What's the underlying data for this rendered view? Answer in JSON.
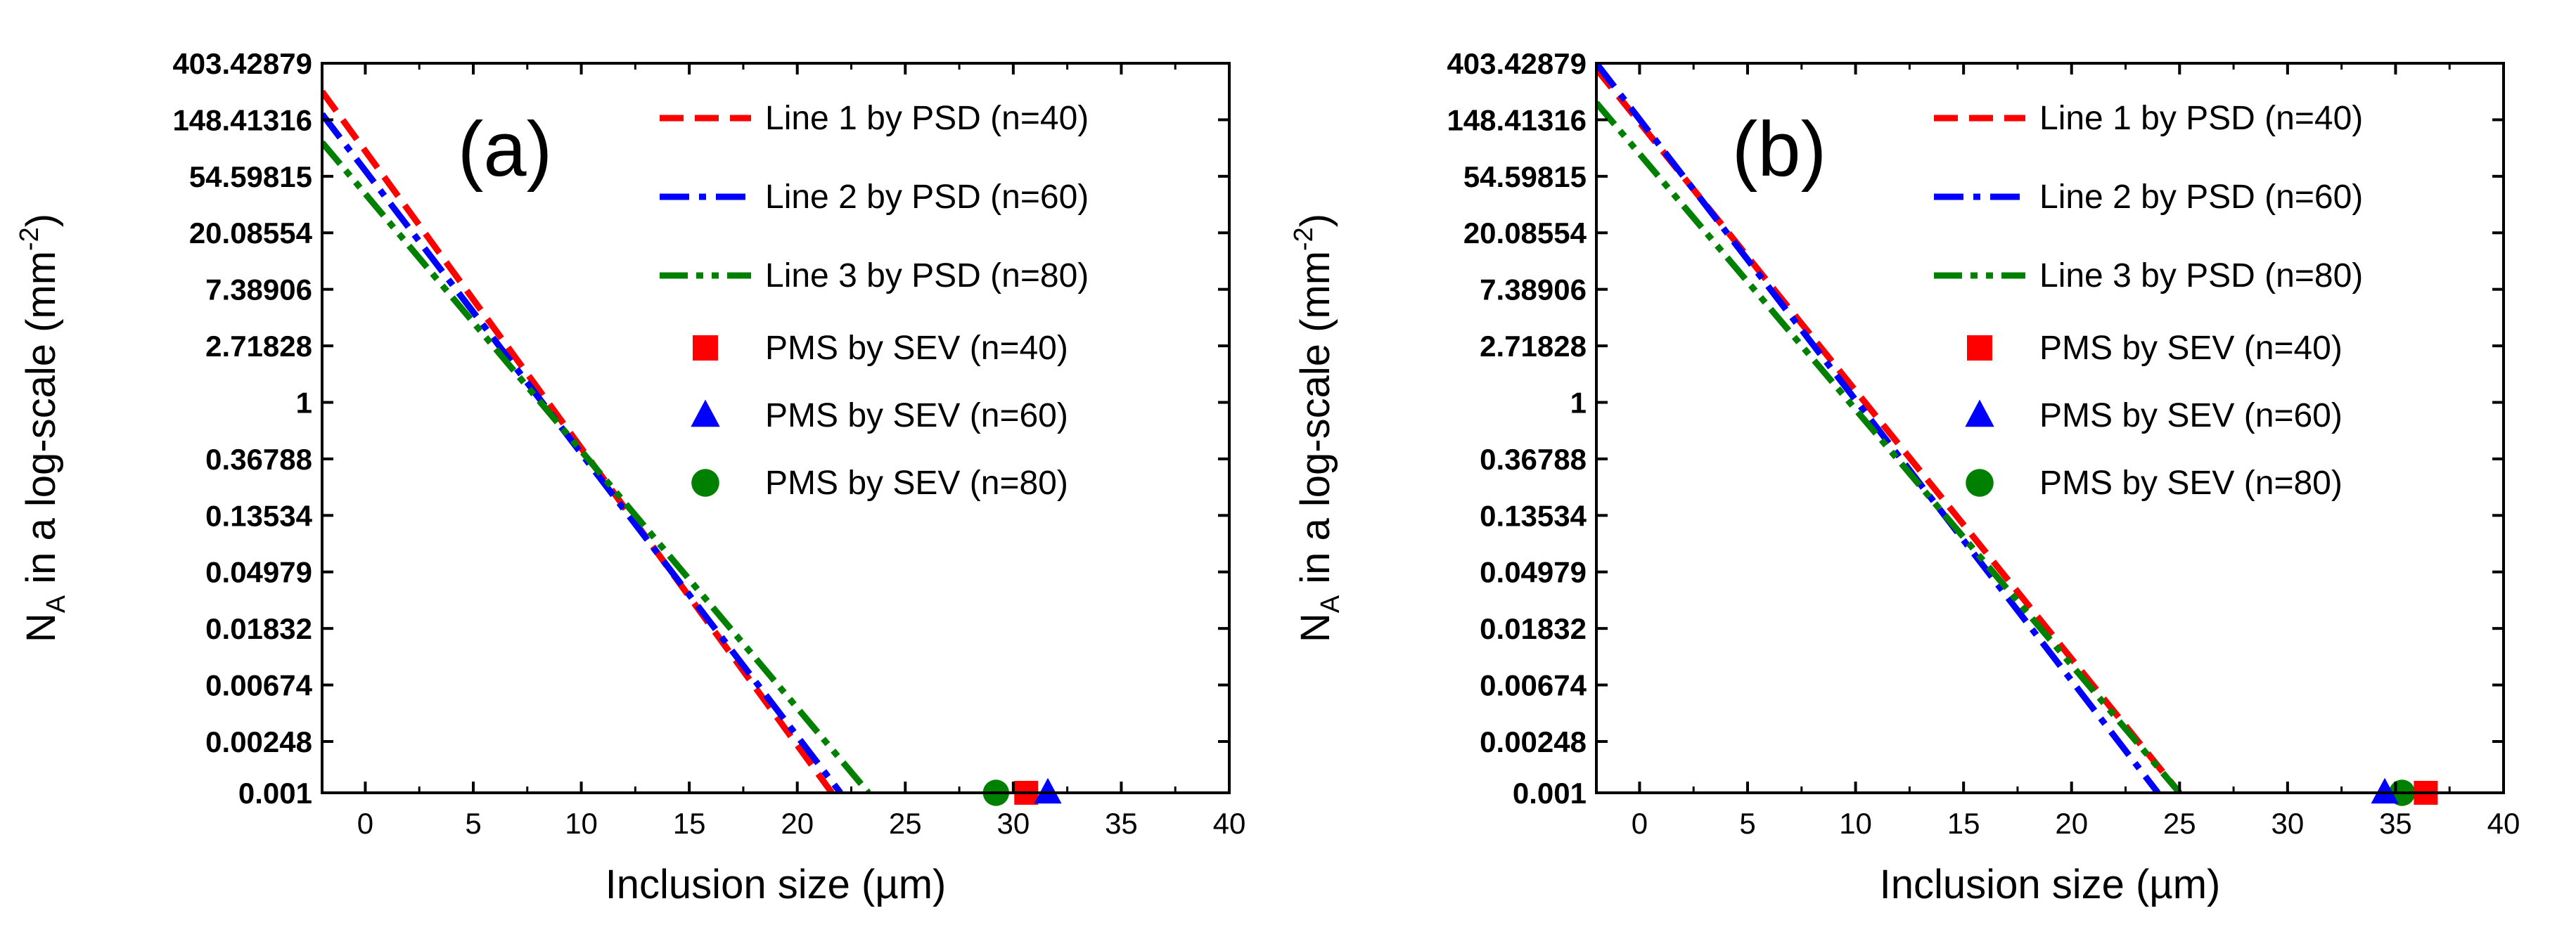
{
  "chart_data": [
    {
      "type": "line",
      "panel_label": "(a)",
      "xlabel": "Inclusion size (µm)",
      "ylabel_main": "N",
      "ylabel_sub": "A",
      "ylabel_rest": " in a log-scale (mm",
      "ylabel_sup": "-2",
      "ylabel_close": ")",
      "xlim": [
        -2,
        40
      ],
      "xticks": [
        0,
        5,
        10,
        15,
        20,
        25,
        30,
        35,
        40
      ],
      "ylim_ln": [
        -6.908,
        6.0
      ],
      "yticks": [
        {
          "label": "403.42879",
          "ln": 6
        },
        {
          "label": "148.41316",
          "ln": 5
        },
        {
          "label": "54.59815",
          "ln": 4
        },
        {
          "label": "20.08554",
          "ln": 3
        },
        {
          "label": "7.38906",
          "ln": 2
        },
        {
          "label": "2.71828",
          "ln": 1
        },
        {
          "label": "1",
          "ln": 0
        },
        {
          "label": "0.36788",
          "ln": -1
        },
        {
          "label": "0.13534",
          "ln": -2
        },
        {
          "label": "0.04979",
          "ln": -3
        },
        {
          "label": "0.01832",
          "ln": -4
        },
        {
          "label": "0.00674",
          "ln": -5
        },
        {
          "label": "0.00248",
          "ln": -6
        },
        {
          "label": "0.001",
          "ln": -6.908
        }
      ],
      "series": [
        {
          "name": "Line 1 by PSD (n=40)",
          "color": "#ff0000",
          "style": "dash",
          "x": [
            -2,
            21.6
          ],
          "ln_y": [
            5.5,
            -6.908
          ]
        },
        {
          "name": "Line 2 by PSD (n=60)",
          "color": "#0000ff",
          "style": "dashdot",
          "x": [
            -2,
            22.0
          ],
          "ln_y": [
            5.1,
            -6.908
          ]
        },
        {
          "name": "Line 3 by PSD (n=80)",
          "color": "#008000",
          "style": "dashdotdot",
          "x": [
            -2,
            23.3
          ],
          "ln_y": [
            4.6,
            -6.908
          ]
        }
      ],
      "markers": [
        {
          "name": "PMS by SEV (n=40)",
          "color": "#ff0000",
          "shape": "square",
          "x": 30.6,
          "ln_y": -6.908
        },
        {
          "name": "PMS by SEV (n=60)",
          "color": "#0000ff",
          "shape": "triangle",
          "x": 31.6,
          "ln_y": -6.908
        },
        {
          "name": "PMS by SEV (n=80)",
          "color": "#008000",
          "shape": "circle",
          "x": 29.2,
          "ln_y": -6.908
        }
      ]
    },
    {
      "type": "line",
      "panel_label": "(b)",
      "xlabel": "Inclusion size (µm)",
      "ylabel_main": "N",
      "ylabel_sub": "A",
      "ylabel_rest": " in a log-scale (mm",
      "ylabel_sup": "-2",
      "ylabel_close": ")",
      "xlim": [
        -2,
        40
      ],
      "xticks": [
        0,
        5,
        10,
        15,
        20,
        25,
        30,
        35,
        40
      ],
      "ylim_ln": [
        -6.908,
        6.0
      ],
      "yticks": [
        {
          "label": "403.42879",
          "ln": 6
        },
        {
          "label": "148.41316",
          "ln": 5
        },
        {
          "label": "54.59815",
          "ln": 4
        },
        {
          "label": "20.08554",
          "ln": 3
        },
        {
          "label": "7.38906",
          "ln": 2
        },
        {
          "label": "2.71828",
          "ln": 1
        },
        {
          "label": "1",
          "ln": 0
        },
        {
          "label": "0.36788",
          "ln": -1
        },
        {
          "label": "0.13534",
          "ln": -2
        },
        {
          "label": "0.04979",
          "ln": -3
        },
        {
          "label": "0.01832",
          "ln": -4
        },
        {
          "label": "0.00674",
          "ln": -5
        },
        {
          "label": "0.00248",
          "ln": -6
        },
        {
          "label": "0.001",
          "ln": -6.908
        }
      ],
      "series": [
        {
          "name": "Line 1 by PSD (n=40)",
          "color": "#ff0000",
          "style": "dash",
          "x": [
            -2,
            25.0
          ],
          "ln_y": [
            5.9,
            -6.908
          ]
        },
        {
          "name": "Line 2 by PSD (n=60)",
          "color": "#0000ff",
          "style": "dashdot",
          "x": [
            -2,
            24.0
          ],
          "ln_y": [
            6.0,
            -6.908
          ]
        },
        {
          "name": "Line 3 by PSD (n=80)",
          "color": "#008000",
          "style": "dashdotdot",
          "x": [
            -2,
            25.0
          ],
          "ln_y": [
            5.3,
            -6.908
          ]
        }
      ],
      "markers": [
        {
          "name": "PMS by SEV (n=40)",
          "color": "#ff0000",
          "shape": "square",
          "x": 36.4,
          "ln_y": -6.908
        },
        {
          "name": "PMS by SEV (n=60)",
          "color": "#0000ff",
          "shape": "triangle",
          "x": 34.5,
          "ln_y": -6.908
        },
        {
          "name": "PMS by SEV (n=80)",
          "color": "#008000",
          "shape": "circle",
          "x": 35.3,
          "ln_y": -6.908
        }
      ]
    }
  ]
}
